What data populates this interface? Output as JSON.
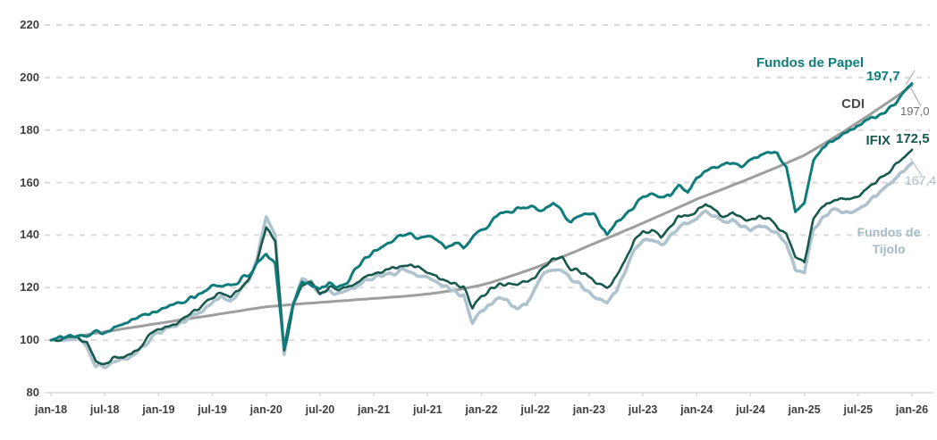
{
  "chart": {
    "background": "#ffffff",
    "colors": {
      "papel": "#0E7C7B",
      "cdi": "#9E9E9E",
      "ifix": "#17594C",
      "tijolo": "#AEC3CD",
      "grid": "#d4d4d4",
      "axis_text": "#3f3f3f"
    },
    "y_axis": {
      "ticks": [
        220,
        200,
        180,
        160,
        140,
        120,
        100,
        80
      ]
    },
    "series_labels": {
      "papel": {
        "label": "Fundos de Papel",
        "value": "197,7"
      },
      "cdi": {
        "label": "CDI",
        "value": "197,0"
      },
      "ifix": {
        "label": "IFIX",
        "value": "172,5"
      },
      "tijolo": {
        "label": "Fundos de Tijolo",
        "line1": "Fundos de",
        "line2": "Tijolo",
        "value": "167,4"
      }
    }
  },
  "chart_data": {
    "type": "line",
    "title": "",
    "xlabel": "",
    "ylabel": "",
    "x_start": "jan-18",
    "x_end": "jan-26",
    "frequency": "monthly",
    "base_value": 100,
    "ylim": [
      80,
      220
    ],
    "grid": "horizontal-dashed",
    "legend_position": "end-of-line-labels",
    "x_tick_labels": [
      "jan-18",
      "jul-18",
      "jan-19",
      "jul-19",
      "jan-20",
      "jul-20",
      "jan-21",
      "jul-21",
      "jan-22",
      "jul-22",
      "jan-23",
      "jul-23",
      "jan-24",
      "jul-24",
      "jan-25",
      "jul-25",
      "jan-26"
    ],
    "series": [
      {
        "name": "Fundos de Papel",
        "color": "#0E7C7B",
        "end_label": "197,7",
        "values": [
          100,
          101,
          101.5,
          102.5,
          102,
          103,
          103.5,
          105,
          106,
          107.5,
          109,
          110.5,
          111.5,
          112.5,
          113.5,
          115,
          116.5,
          118.5,
          120.5,
          121,
          121,
          122.5,
          125,
          128.5,
          132,
          129,
          98,
          114,
          123,
          121,
          119,
          121,
          120,
          122,
          127,
          131,
          134,
          136,
          138,
          140,
          140,
          139,
          140,
          139,
          135,
          137,
          135,
          139,
          141,
          145,
          148,
          149,
          150,
          151,
          151,
          150,
          152,
          149,
          145,
          148,
          149,
          146,
          140,
          145,
          148,
          151,
          154,
          156,
          155,
          155,
          159,
          156,
          162,
          164,
          166,
          167,
          168,
          167,
          169,
          170,
          171,
          172,
          166,
          149,
          152,
          168,
          174,
          176,
          178,
          180,
          182,
          184,
          185,
          186,
          190,
          194,
          197.7
        ]
      },
      {
        "name": "CDI",
        "color": "#9E9E9E",
        "end_label": "197,0",
        "values": [
          100,
          100.5,
          101.1,
          101.6,
          102.1,
          102.7,
          103.2,
          103.7,
          104.3,
          104.8,
          105.3,
          105.9,
          106.4,
          106.9,
          107.5,
          108,
          108.5,
          109,
          109.5,
          110.1,
          110.6,
          111.1,
          111.7,
          112.2,
          112.7,
          113,
          113.3,
          113.6,
          113.9,
          114.1,
          114.4,
          114.6,
          114.9,
          115.1,
          115.4,
          115.6,
          115.9,
          116.1,
          116.4,
          116.6,
          116.9,
          117.2,
          117.6,
          118,
          118.5,
          119,
          119.6,
          120.3,
          121,
          121.9,
          123,
          124.1,
          125.2,
          126.4,
          127.6,
          128.9,
          130.3,
          131.7,
          133.1,
          134.5,
          136,
          137.4,
          138.8,
          140.2,
          141.7,
          143.1,
          144.6,
          146.1,
          147.6,
          149.1,
          150.6,
          152.1,
          153.7,
          155,
          156.3,
          157.6,
          159,
          160.3,
          161.7,
          163.1,
          164.5,
          165.9,
          167.4,
          168.9,
          170.4,
          172.4,
          174.4,
          176.5,
          178.6,
          180.8,
          183,
          185.2,
          187.5,
          189.8,
          192.1,
          194.5,
          197
        ]
      },
      {
        "name": "IFIX",
        "color": "#17594C",
        "end_label": "172,5",
        "values": [
          100,
          100.5,
          101,
          101,
          99,
          92,
          91.5,
          93,
          93.5,
          94.5,
          98,
          102,
          104.5,
          105.5,
          106.5,
          108.5,
          111,
          113.5,
          116.5,
          118,
          116.5,
          119,
          122.5,
          130,
          143,
          138,
          96,
          113,
          121,
          122,
          118,
          120,
          119,
          120,
          122,
          124.5,
          126,
          126.5,
          127.5,
          128,
          128.5,
          127.5,
          126,
          125,
          122,
          121,
          120,
          112,
          117,
          119,
          121,
          122,
          121,
          123,
          124,
          129,
          131.5,
          132,
          127.5,
          126,
          123.5,
          121.5,
          120,
          124,
          130,
          138,
          141,
          141.5,
          139,
          143,
          147,
          147.5,
          149,
          152,
          150,
          147,
          148,
          146,
          145,
          147,
          146,
          143,
          141,
          132,
          130,
          146,
          151,
          153,
          154,
          153,
          155,
          158,
          160,
          163,
          166,
          169,
          172.5
        ]
      },
      {
        "name": "Fundos de Tijolo",
        "color": "#AEC3CD",
        "end_label": "167,4",
        "values": [
          100,
          100.5,
          101,
          100.5,
          98,
          90,
          89.5,
          92,
          92.5,
          93.5,
          97,
          100.5,
          103,
          104.5,
          105.5,
          107.5,
          110,
          112,
          114.5,
          116.5,
          115,
          118,
          122,
          131,
          147,
          140,
          94,
          114,
          123,
          122.5,
          117.5,
          119,
          117.5,
          118.5,
          120.5,
          123,
          124,
          124.5,
          125.5,
          126,
          126,
          125,
          123.5,
          122,
          120,
          118.5,
          117,
          106.5,
          111,
          113.5,
          115.5,
          114.5,
          112,
          113,
          120,
          125,
          127,
          127,
          123,
          121,
          118,
          116,
          114.5,
          119,
          126,
          133.5,
          137,
          138,
          136,
          140,
          143,
          144.5,
          146,
          149,
          147,
          144.5,
          146,
          143,
          142,
          144,
          143,
          140,
          137,
          127.5,
          125.5,
          142,
          146.5,
          148.5,
          149.5,
          148.5,
          150,
          152.5,
          155,
          158,
          161,
          164.5,
          167.4
        ]
      }
    ]
  }
}
